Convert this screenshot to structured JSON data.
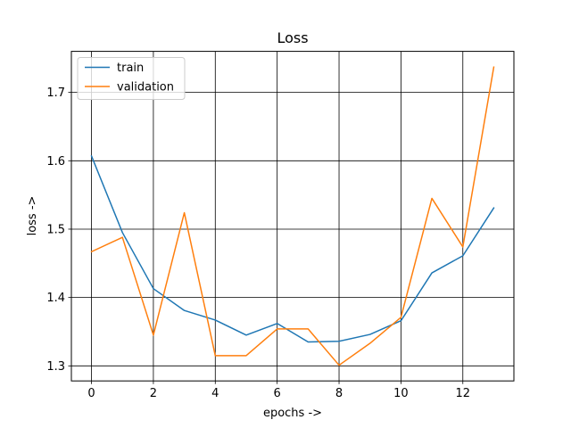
{
  "chart_data": {
    "type": "line",
    "title": "Loss",
    "xlabel": "epochs ->",
    "ylabel": "loss ->",
    "x": [
      0,
      1,
      2,
      3,
      4,
      5,
      6,
      7,
      8,
      9,
      10,
      11,
      12,
      13
    ],
    "xlim": [
      -0.65,
      13.65
    ],
    "ylim": [
      1.278,
      1.76
    ],
    "xticks": [
      0,
      2,
      4,
      6,
      8,
      10,
      12
    ],
    "yticks": [
      1.3,
      1.4,
      1.5,
      1.6,
      1.7
    ],
    "xtick_labels": [
      "0",
      "2",
      "4",
      "6",
      "8",
      "10",
      "12"
    ],
    "ytick_labels": [
      "1.3",
      "1.4",
      "1.5",
      "1.6",
      "1.7"
    ],
    "grid": true,
    "legend_position": "top-left",
    "series": [
      {
        "name": "train",
        "color": "#1f77b4",
        "values": [
          1.607,
          1.495,
          1.413,
          1.381,
          1.367,
          1.345,
          1.362,
          1.335,
          1.336,
          1.346,
          1.366,
          1.436,
          1.461,
          1.531
        ]
      },
      {
        "name": "validation",
        "color": "#ff7f0e",
        "values": [
          1.467,
          1.488,
          1.345,
          1.524,
          1.315,
          1.315,
          1.354,
          1.354,
          1.301,
          1.333,
          1.371,
          1.545,
          1.474,
          1.737
        ]
      }
    ]
  }
}
